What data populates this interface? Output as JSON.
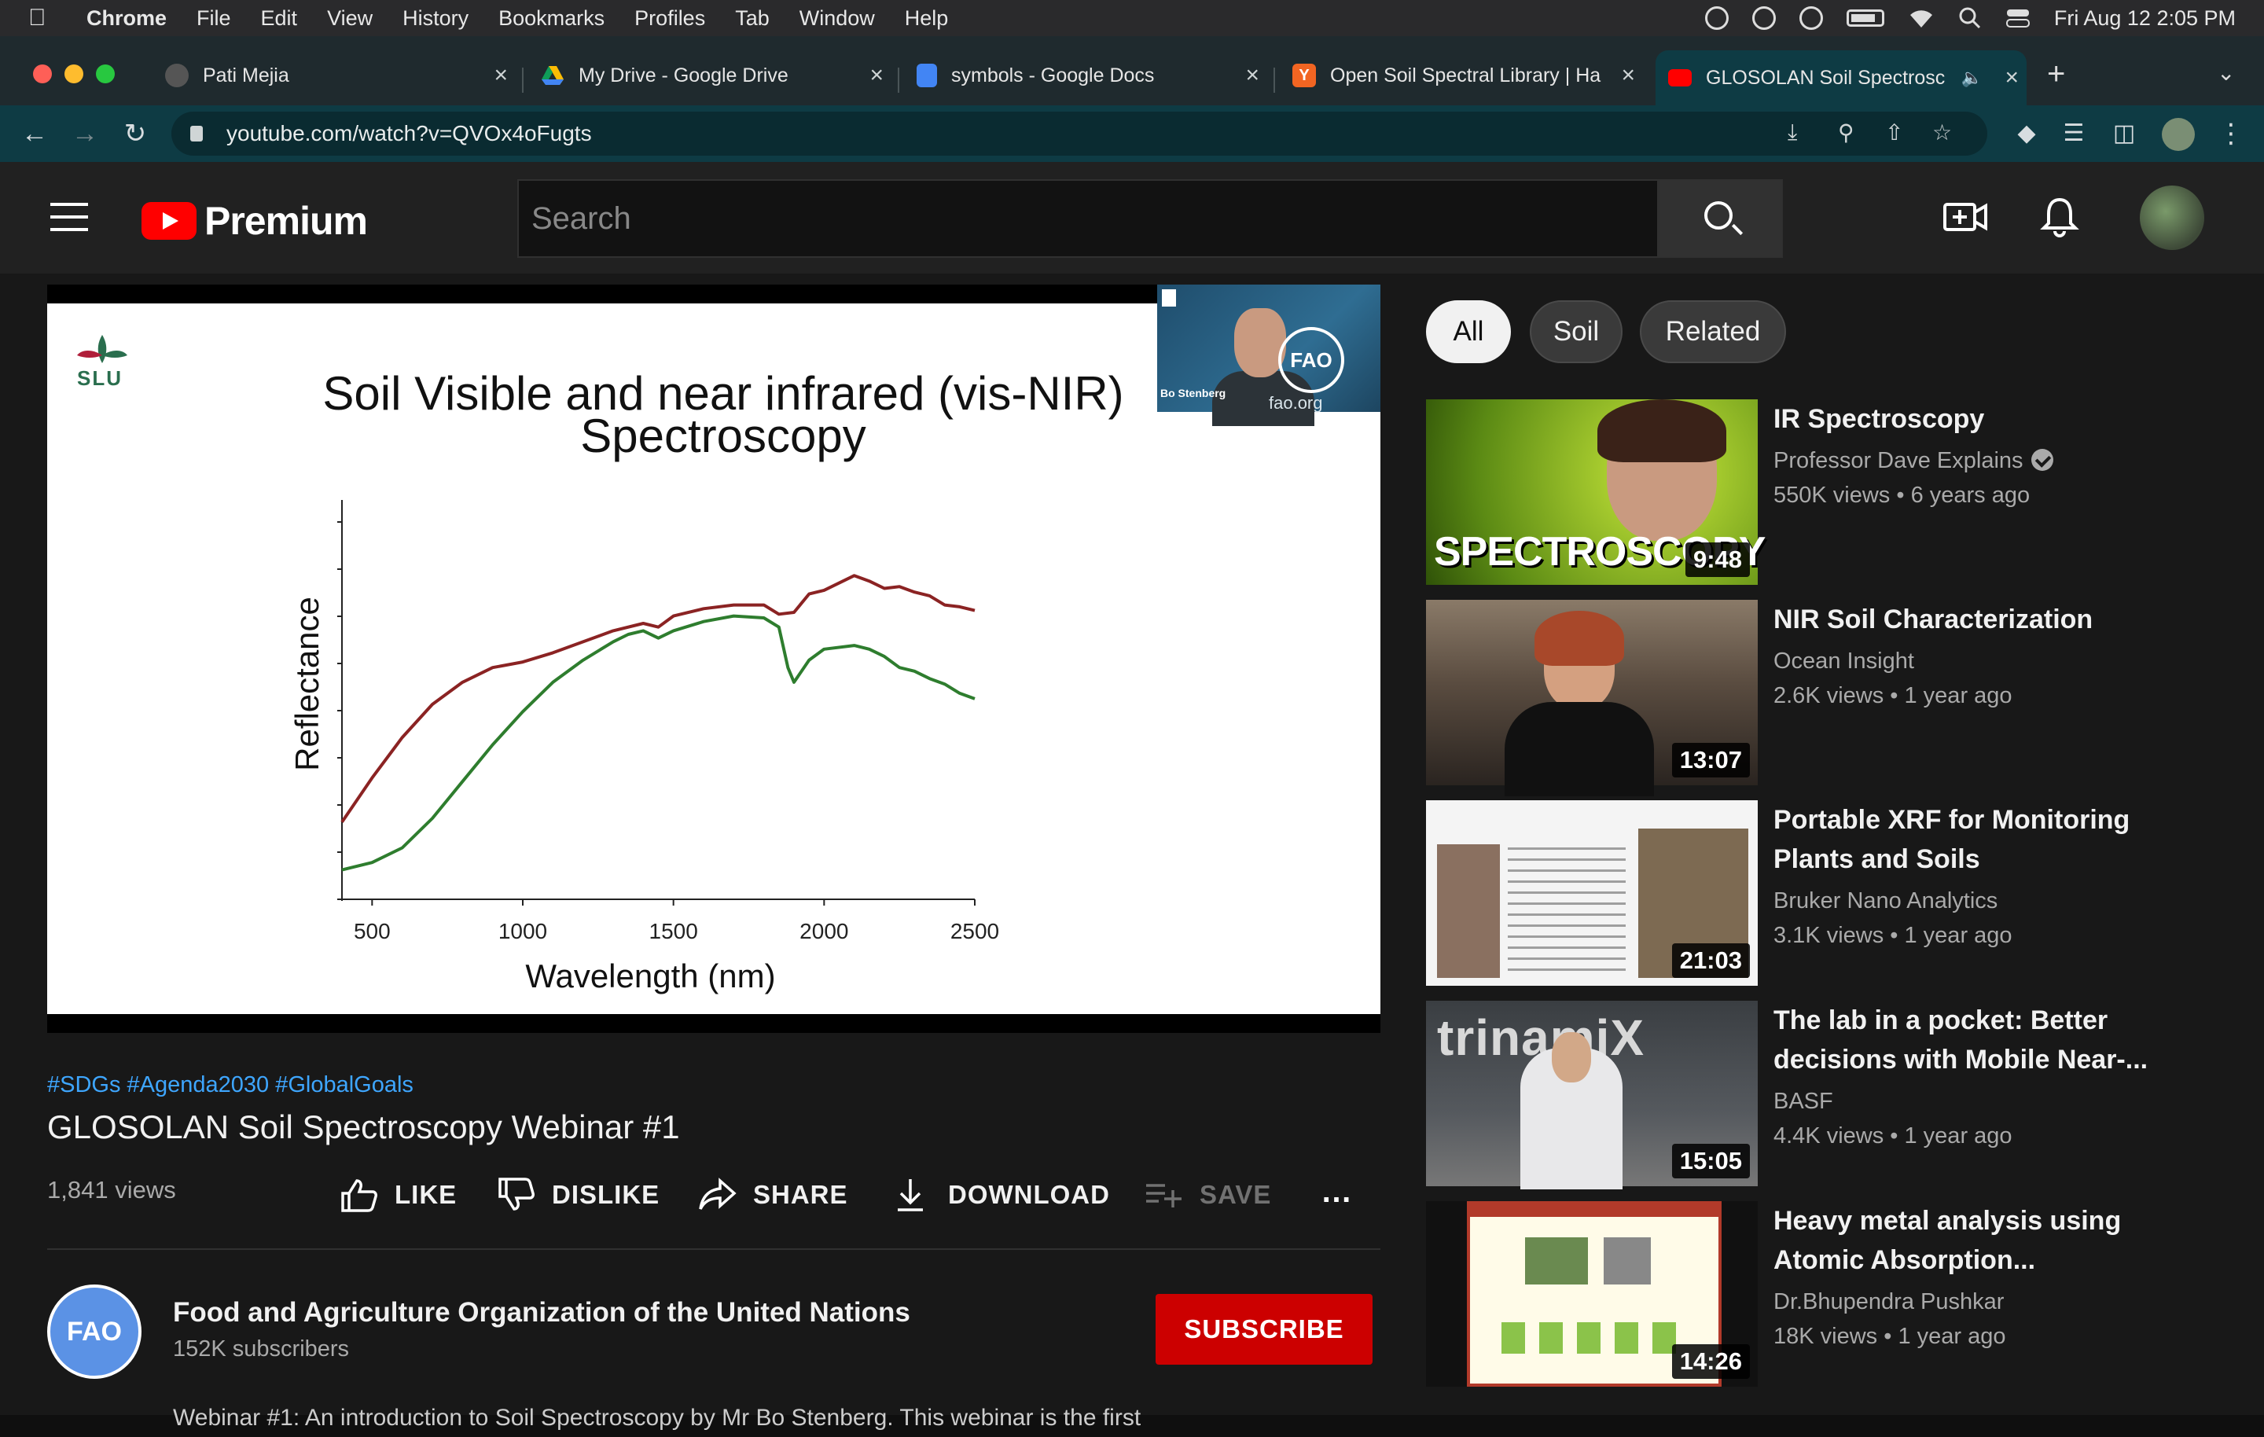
{
  "menubar": {
    "app": "Chrome",
    "items": [
      "File",
      "Edit",
      "View",
      "History",
      "Bookmarks",
      "Profiles",
      "Tab",
      "Window",
      "Help"
    ],
    "datetime": "Fri Aug 12  2:05 PM"
  },
  "tabs": [
    {
      "title": "Pati Mejia",
      "favicon": "profile-avatar-icon"
    },
    {
      "title": "My Drive - Google Drive",
      "favicon": "google-drive-icon"
    },
    {
      "title": "symbols - Google Docs",
      "favicon": "google-docs-icon"
    },
    {
      "title": "Open Soil Spectral Library | Ha",
      "favicon": "y-combinator-icon"
    },
    {
      "title": "GLOSOLAN Soil Spectrosc",
      "favicon": "youtube-icon",
      "active": true
    }
  ],
  "address": {
    "url": "youtube.com/watch?v=QVOx4oFugts"
  },
  "youtube": {
    "logo_text": "Premium",
    "search_placeholder": "Search"
  },
  "video": {
    "slide": {
      "logo_text": "SLU",
      "title_line1": "Soil Visible and near infrared (vis-NIR)",
      "title_line2": "Spectroscopy",
      "webcam_name": "Bo Stenberg",
      "webcam_org": "fao.org",
      "webcam_logo": "FAO"
    },
    "hashtags": "#SDGs #Agenda2030 #GlobalGoals",
    "title": "GLOSOLAN Soil Spectroscopy Webinar #1",
    "views": "1,841 views",
    "actions": {
      "like": "LIKE",
      "dislike": "DISLIKE",
      "share": "SHARE",
      "download": "DOWNLOAD",
      "save": "SAVE"
    },
    "channel": {
      "name": "Food and Agriculture Organization of the United Nations",
      "subscribers": "152K subscribers",
      "avatar_text": "FAO"
    },
    "subscribe_label": "SUBSCRIBE",
    "description_peek": "Webinar #1: An introduction to Soil Spectroscopy by Mr Bo Stenberg. This webinar is the first"
  },
  "chips": [
    "All",
    "Soil",
    "Related"
  ],
  "recommendations": [
    {
      "title_line1": "IR Spectroscopy",
      "title_line2": "",
      "channel": "Professor Dave Explains",
      "verified": true,
      "meta": "550K views • 6 years ago",
      "duration": "9:48",
      "thumb_text": "SPECTROSCOPY"
    },
    {
      "title_line1": "NIR Soil Characterization",
      "title_line2": "",
      "channel": "Ocean Insight",
      "meta": "2.6K views • 1 year ago",
      "duration": "13:07"
    },
    {
      "title_line1": "Portable XRF for Monitoring",
      "title_line2": "Plants and Soils",
      "channel": "Bruker Nano Analytics",
      "meta": "3.1K views • 1 year ago",
      "duration": "21:03"
    },
    {
      "title_line1": "The lab in a pocket: Better",
      "title_line2": "decisions with Mobile Near-...",
      "channel": "BASF",
      "meta": "4.4K views • 1 year ago",
      "duration": "15:05",
      "thumb_text": "trinamiX"
    },
    {
      "title_line1": "Heavy metal analysis using",
      "title_line2": "Atomic Absorption...",
      "channel": "Dr.Bhupendra Pushkar",
      "meta": "18K views • 1 year ago",
      "duration": "14:26"
    }
  ],
  "chart_data": {
    "type": "line",
    "title": "Soil Visible and near infrared (vis-NIR) Spectroscopy",
    "xlabel": "Wavelength (nm)",
    "ylabel": "Reflectance",
    "xlim": [
      400,
      2500
    ],
    "x_ticks": [
      500,
      1000,
      1500,
      2000,
      2500
    ],
    "grid": false,
    "series": [
      {
        "color": "#8b2323",
        "x": [
          400,
          450,
          500,
          600,
          700,
          800,
          900,
          1000,
          1100,
          1200,
          1300,
          1400,
          1450,
          1500,
          1600,
          1700,
          1800,
          1850,
          1900,
          1950,
          2000,
          2100,
          2150,
          2200,
          2250,
          2300,
          2350,
          2400,
          2450,
          2500
        ],
        "y": [
          0.21,
          0.27,
          0.33,
          0.44,
          0.53,
          0.59,
          0.63,
          0.645,
          0.67,
          0.7,
          0.73,
          0.75,
          0.74,
          0.77,
          0.79,
          0.8,
          0.8,
          0.775,
          0.78,
          0.83,
          0.84,
          0.88,
          0.865,
          0.845,
          0.85,
          0.835,
          0.825,
          0.8,
          0.795,
          0.785
        ]
      },
      {
        "color": "#2e7d2e",
        "x": [
          400,
          500,
          600,
          700,
          800,
          900,
          1000,
          1100,
          1200,
          1300,
          1350,
          1400,
          1450,
          1500,
          1600,
          1700,
          1800,
          1850,
          1880,
          1900,
          1950,
          2000,
          2100,
          2150,
          2200,
          2250,
          2300,
          2350,
          2400,
          2450,
          2500
        ],
        "y": [
          0.08,
          0.1,
          0.14,
          0.22,
          0.32,
          0.42,
          0.51,
          0.59,
          0.65,
          0.7,
          0.72,
          0.73,
          0.71,
          0.73,
          0.755,
          0.77,
          0.765,
          0.74,
          0.63,
          0.59,
          0.65,
          0.68,
          0.69,
          0.68,
          0.66,
          0.63,
          0.62,
          0.6,
          0.585,
          0.56,
          0.545
        ]
      }
    ]
  }
}
